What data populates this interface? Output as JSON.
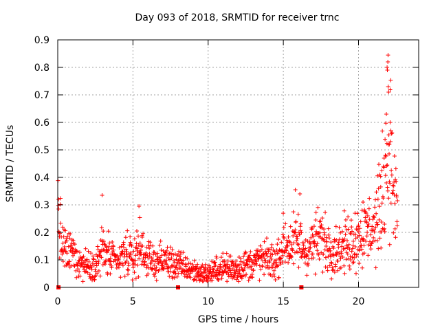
{
  "chart_data": {
    "type": "scatter",
    "title": "Day 093 of 2018, SRMTID for receiver trnc",
    "xlabel": "GPS time / hours",
    "ylabel": "SRMTID / TECUs",
    "xlim": [
      0,
      24
    ],
    "ylim": [
      0,
      0.9
    ],
    "xticks": [
      "0",
      "5",
      "10",
      "15",
      "20"
    ],
    "xtick_values": [
      0,
      5,
      10,
      15,
      20
    ],
    "yticks": [
      "0",
      "0.1",
      "0.2",
      "0.3",
      "0.4",
      "0.5",
      "0.6",
      "0.7",
      "0.8",
      "0.9"
    ],
    "ytick_values": [
      0,
      0.1,
      0.2,
      0.3,
      0.4,
      0.5,
      0.6,
      0.7,
      0.8,
      0.9
    ],
    "grid": true,
    "marker": "+",
    "color": "#ff0000",
    "gap_markers_x": [
      0.05,
      8.0,
      16.2
    ],
    "series": [
      {
        "name": "SRMTID",
        "profile_x": [
          0.0,
          0.1,
          0.3,
          0.6,
          1.0,
          1.5,
          2.0,
          2.5,
          3.0,
          3.5,
          4.0,
          4.5,
          5.0,
          5.5,
          6.0,
          6.5,
          7.0,
          7.5,
          8.0,
          8.5,
          9.0,
          9.5,
          10.0,
          10.5,
          11.0,
          11.5,
          12.0,
          12.5,
          13.0,
          13.5,
          14.0,
          14.5,
          15.0,
          15.5,
          16.0,
          16.5,
          17.0,
          17.5,
          18.0,
          18.5,
          19.0,
          19.5,
          20.0,
          20.5,
          21.0,
          21.3,
          21.6,
          21.8,
          22.0,
          22.2,
          22.4,
          22.6
        ],
        "profile_y": [
          0.32,
          0.22,
          0.15,
          0.12,
          0.13,
          0.09,
          0.08,
          0.08,
          0.14,
          0.1,
          0.09,
          0.12,
          0.1,
          0.15,
          0.1,
          0.09,
          0.1,
          0.09,
          0.08,
          0.07,
          0.06,
          0.05,
          0.05,
          0.06,
          0.07,
          0.07,
          0.07,
          0.08,
          0.09,
          0.1,
          0.1,
          0.09,
          0.16,
          0.15,
          0.17,
          0.13,
          0.16,
          0.18,
          0.15,
          0.14,
          0.15,
          0.17,
          0.19,
          0.2,
          0.22,
          0.25,
          0.35,
          0.45,
          0.55,
          0.45,
          0.3,
          0.28
        ],
        "peaks": [
          {
            "x": 0.05,
            "y": 0.32
          },
          {
            "x": 2.95,
            "y": 0.335
          },
          {
            "x": 5.4,
            "y": 0.295
          },
          {
            "x": 15.8,
            "y": 0.355
          },
          {
            "x": 16.1,
            "y": 0.34
          },
          {
            "x": 20.3,
            "y": 0.31
          },
          {
            "x": 21.7,
            "y": 0.47
          },
          {
            "x": 21.85,
            "y": 0.63
          },
          {
            "x": 21.95,
            "y": 0.82
          },
          {
            "x": 21.9,
            "y": 0.8
          },
          {
            "x": 21.92,
            "y": 0.79
          },
          {
            "x": 21.97,
            "y": 0.73
          },
          {
            "x": 22.0,
            "y": 0.71
          },
          {
            "x": 22.1,
            "y": 0.6
          },
          {
            "x": 22.15,
            "y": 0.57
          },
          {
            "x": 22.05,
            "y": 0.52
          }
        ]
      }
    ]
  }
}
